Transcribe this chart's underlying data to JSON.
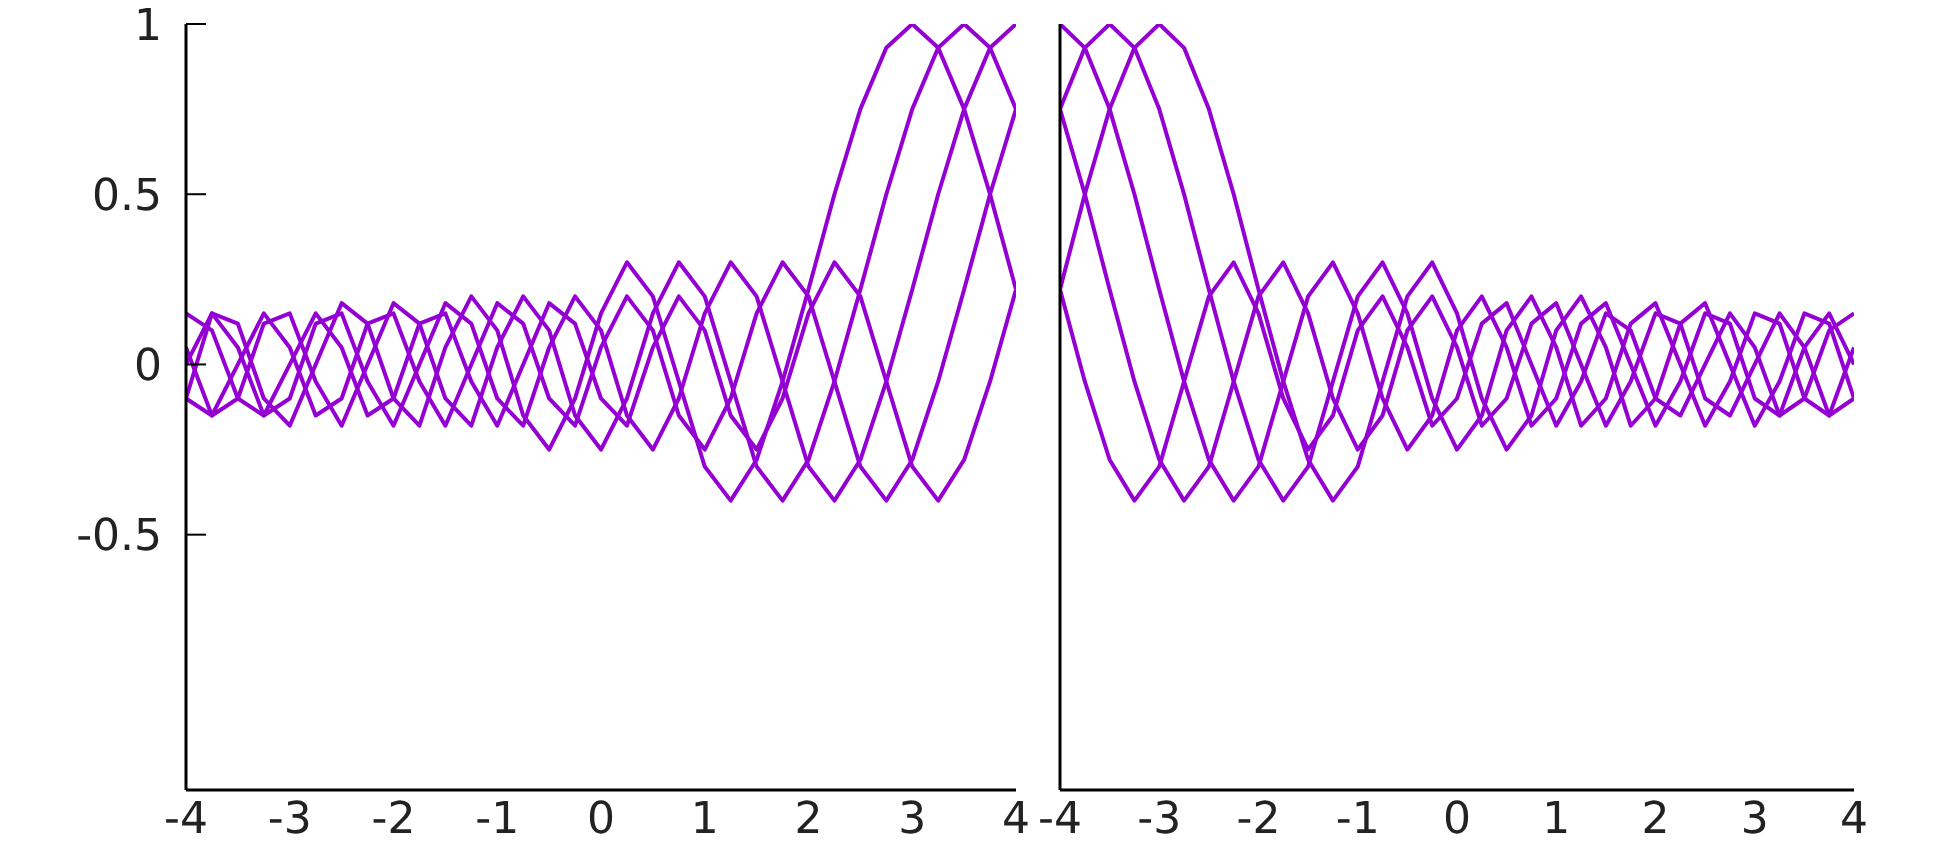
{
  "chart_data": [
    {
      "type": "line",
      "xlim": [
        -4,
        4
      ],
      "xticks": [
        -4,
        -3,
        -2,
        -1,
        0,
        1,
        2,
        3,
        4
      ],
      "ylim": [
        -1.25,
        1
      ],
      "yticks": [
        -0.5,
        0,
        0.5,
        1
      ],
      "grid": false,
      "legend": false,
      "marker": "none",
      "line_style": "solid",
      "x": [
        -4,
        -3.75,
        -3.5,
        -3.25,
        -3,
        -2.75,
        -2.5,
        -2.25,
        -2,
        -1.75,
        -1.5,
        -1.25,
        -1,
        -0.75,
        -0.5,
        -0.25,
        0,
        0.25,
        0.5,
        0.75,
        1,
        1.25,
        1.5,
        1.75,
        2,
        2.25,
        2.5,
        2.75,
        3,
        3.25,
        3.5,
        3.75,
        4
      ],
      "series": [
        {
          "color": "#9400d3",
          "values": [
            -0.1,
            0.15,
            0.12,
            -0.1,
            -0.18,
            0,
            0.18,
            0.12,
            -0.1,
            -0.18,
            0.05,
            0.2,
            0.1,
            -0.15,
            -0.25,
            -0.1,
            0.15,
            0.3,
            0.2,
            -0.05,
            -0.3,
            -0.4,
            -0.28,
            -0.05,
            0.22,
            0.5,
            0.75,
            0.93,
            1,
            0.93,
            0.75,
            0.5,
            0.22
          ]
        },
        {
          "color": "#9400d3",
          "values": [
            0.05,
            -0.15,
            -0.1,
            0.12,
            0.15,
            -0.05,
            -0.18,
            0,
            0.18,
            0.12,
            -0.1,
            -0.18,
            0.05,
            0.2,
            0.1,
            -0.15,
            -0.25,
            -0.1,
            0.15,
            0.3,
            0.2,
            -0.05,
            -0.3,
            -0.4,
            -0.28,
            -0.05,
            0.22,
            0.5,
            0.75,
            0.93,
            1,
            0.93,
            0.75
          ]
        },
        {
          "color": "#9400d3",
          "values": [
            0,
            0.15,
            0.05,
            -0.15,
            -0.1,
            0.12,
            0.15,
            -0.05,
            -0.18,
            0,
            0.18,
            0.12,
            -0.1,
            -0.18,
            0.05,
            0.2,
            0.1,
            -0.15,
            -0.25,
            -0.1,
            0.15,
            0.3,
            0.2,
            -0.05,
            -0.3,
            -0.4,
            -0.28,
            -0.05,
            0.22,
            0.5,
            0.75,
            0.93,
            1
          ]
        },
        {
          "color": "#9400d3",
          "values": [
            -0.1,
            -0.15,
            0,
            0.15,
            0.05,
            -0.15,
            -0.1,
            0.12,
            0.15,
            -0.05,
            -0.18,
            0,
            0.18,
            0.12,
            -0.1,
            -0.18,
            0.05,
            0.2,
            0.1,
            -0.15,
            -0.25,
            -0.1,
            0.15,
            0.3,
            0.2,
            -0.05,
            -0.3,
            -0.4,
            -0.28,
            -0.05,
            0.22,
            0.5,
            0.75
          ]
        },
        {
          "color": "#9400d3",
          "values": [
            0.15,
            0.1,
            -0.1,
            -0.15,
            0,
            0.15,
            0.05,
            -0.15,
            -0.1,
            0.12,
            0.15,
            -0.05,
            -0.18,
            0,
            0.18,
            0.12,
            -0.1,
            -0.18,
            0.05,
            0.2,
            0.1,
            -0.15,
            -0.25,
            -0.1,
            0.15,
            0.3,
            0.2,
            -0.05,
            -0.3,
            -0.4,
            -0.28,
            -0.05,
            0.22
          ]
        }
      ]
    },
    {
      "type": "line",
      "xlim": [
        -4,
        4
      ],
      "xticks": [
        -4,
        -3,
        -2,
        -1,
        0,
        1,
        2,
        3,
        4
      ],
      "ylim": [
        -1.25,
        1
      ],
      "tick_labels": "x",
      "grid": false,
      "legend": false,
      "marker": "none",
      "line_style": "solid",
      "x": [
        -4,
        -3.75,
        -3.5,
        -3.25,
        -3,
        -2.75,
        -2.5,
        -2.25,
        -2,
        -1.75,
        -1.5,
        -1.25,
        -1,
        -0.75,
        -0.5,
        -0.25,
        0,
        0.25,
        0.5,
        0.75,
        1,
        1.25,
        1.5,
        1.75,
        2,
        2.25,
        2.5,
        2.75,
        3,
        3.25,
        3.5,
        3.75,
        4
      ],
      "series": [
        {
          "color": "#9400d3",
          "values": [
            0.22,
            -0.05,
            -0.28,
            -0.4,
            -0.3,
            -0.05,
            0.2,
            0.3,
            0.15,
            -0.1,
            -0.25,
            -0.15,
            0.1,
            0.2,
            0.05,
            -0.18,
            -0.1,
            0.12,
            0.18,
            0,
            -0.18,
            -0.05,
            0.15,
            0.1,
            -0.1,
            -0.15,
            0,
            0.15,
            0.05,
            -0.15,
            -0.1,
            0.1,
            0.15
          ]
        },
        {
          "color": "#9400d3",
          "values": [
            0.75,
            0.5,
            0.22,
            -0.05,
            -0.28,
            -0.4,
            -0.3,
            -0.05,
            0.2,
            0.3,
            0.15,
            -0.1,
            -0.25,
            -0.15,
            0.1,
            0.2,
            0.05,
            -0.18,
            -0.1,
            0.12,
            0.18,
            0,
            -0.18,
            -0.05,
            0.15,
            0.12,
            -0.1,
            -0.15,
            0,
            0.15,
            0.05,
            -0.15,
            -0.1
          ]
        },
        {
          "color": "#9400d3",
          "values": [
            1,
            0.93,
            0.75,
            0.5,
            0.22,
            -0.05,
            -0.28,
            -0.4,
            -0.3,
            -0.05,
            0.2,
            0.3,
            0.15,
            -0.1,
            -0.25,
            -0.15,
            0.1,
            0.2,
            0.05,
            -0.18,
            -0.1,
            0.12,
            0.18,
            0,
            -0.18,
            -0.05,
            0.15,
            0.12,
            -0.1,
            -0.15,
            0.05,
            0.15,
            0
          ]
        },
        {
          "color": "#9400d3",
          "values": [
            0.75,
            0.93,
            1,
            0.93,
            0.75,
            0.5,
            0.22,
            -0.05,
            -0.28,
            -0.4,
            -0.3,
            -0.05,
            0.2,
            0.3,
            0.15,
            -0.1,
            -0.25,
            -0.15,
            0.1,
            0.2,
            0.05,
            -0.18,
            -0.1,
            0.12,
            0.18,
            0,
            -0.18,
            -0.05,
            0.15,
            0.12,
            -0.1,
            -0.15,
            0.05
          ]
        },
        {
          "color": "#9400d3",
          "values": [
            0.22,
            0.5,
            0.75,
            0.93,
            1,
            0.93,
            0.75,
            0.5,
            0.22,
            -0.05,
            -0.28,
            -0.4,
            -0.3,
            -0.05,
            0.2,
            0.3,
            0.15,
            -0.1,
            -0.25,
            -0.15,
            0.1,
            0.2,
            0.05,
            -0.18,
            -0.1,
            0.12,
            0.18,
            0,
            -0.18,
            -0.05,
            0.15,
            0.12,
            -0.1
          ]
        }
      ]
    }
  ]
}
